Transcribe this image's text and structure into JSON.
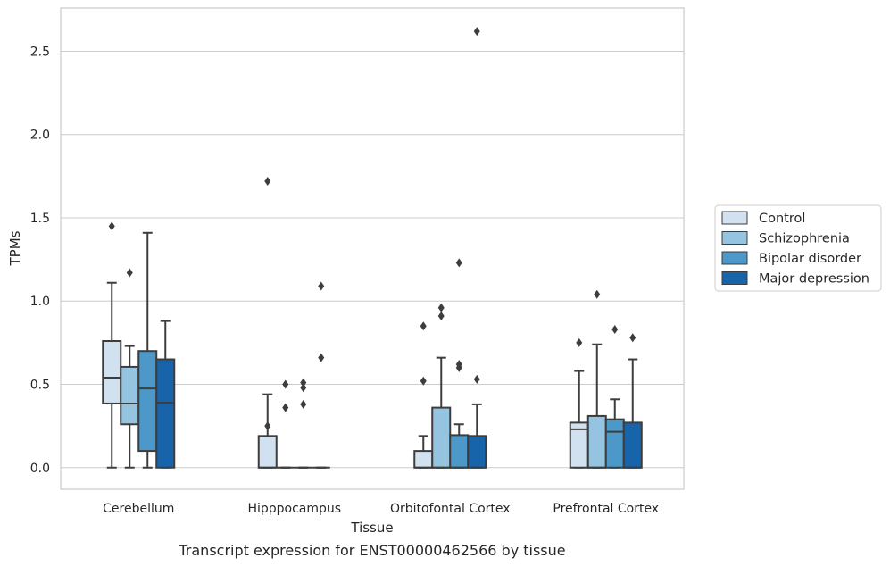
{
  "caption": "Transcript expression for ENST00000462566 by tissue",
  "chart_data": {
    "type": "box",
    "xlabel": "Tissue",
    "ylabel": "TPMs",
    "ylim": [
      -0.13,
      2.76
    ],
    "yticks": [
      0.0,
      0.5,
      1.0,
      1.5,
      2.0,
      2.5
    ],
    "ytick_labels": [
      "0.0",
      "0.5",
      "1.0",
      "1.5",
      "2.0",
      "2.5"
    ],
    "grid": "horizontal",
    "legend_position": "right",
    "categories": [
      "Cerebellum",
      "Hipppocampus",
      "Orbitofontal Cortex",
      "Prefrontal Cortex"
    ],
    "series": [
      {
        "name": "Control",
        "color": "#d1e1f0",
        "boxes": [
          {
            "low": 0.0,
            "q1": 0.385,
            "median": 0.54,
            "q3": 0.76,
            "high": 1.11,
            "outliers": [
              1.45
            ]
          },
          {
            "low": 0.0,
            "q1": 0.0,
            "median": 0.0,
            "q3": 0.19,
            "high": 0.44,
            "outliers": [
              0.25,
              1.72
            ]
          },
          {
            "low": 0.0,
            "q1": 0.0,
            "median": 0.0,
            "q3": 0.1,
            "high": 0.19,
            "outliers": [
              0.52,
              0.85
            ]
          },
          {
            "low": 0.0,
            "q1": 0.0,
            "median": 0.23,
            "q3": 0.27,
            "high": 0.58,
            "outliers": [
              0.75
            ]
          }
        ]
      },
      {
        "name": "Schizophrenia",
        "color": "#94c4df",
        "boxes": [
          {
            "low": 0.0,
            "q1": 0.26,
            "median": 0.385,
            "q3": 0.605,
            "high": 0.73,
            "outliers": [
              1.17
            ]
          },
          {
            "low": 0.0,
            "q1": 0.0,
            "median": 0.0,
            "q3": 0.0,
            "high": 0.0,
            "outliers": [
              0.36,
              0.5
            ]
          },
          {
            "low": 0.0,
            "q1": 0.0,
            "median": 0.0,
            "q3": 0.36,
            "high": 0.66,
            "outliers": [
              0.91,
              0.96
            ]
          },
          {
            "low": 0.0,
            "q1": 0.0,
            "median": 0.0,
            "q3": 0.31,
            "high": 0.74,
            "outliers": [
              1.04
            ]
          }
        ]
      },
      {
        "name": "Bipolar disorder",
        "color": "#4b98c9",
        "boxes": [
          {
            "low": 0.0,
            "q1": 0.1,
            "median": 0.475,
            "q3": 0.7,
            "high": 1.41,
            "outliers": []
          },
          {
            "low": 0.0,
            "q1": 0.0,
            "median": 0.0,
            "q3": 0.0,
            "high": 0.0,
            "outliers": [
              0.38,
              0.48,
              0.51
            ]
          },
          {
            "low": 0.0,
            "q1": 0.0,
            "median": 0.0,
            "q3": 0.195,
            "high": 0.26,
            "outliers": [
              0.6,
              0.62,
              1.23
            ]
          },
          {
            "low": 0.0,
            "q1": 0.0,
            "median": 0.215,
            "q3": 0.29,
            "high": 0.41,
            "outliers": [
              0.83
            ]
          }
        ]
      },
      {
        "name": "Major depression",
        "color": "#1764ab",
        "boxes": [
          {
            "low": 0.0,
            "q1": 0.0,
            "median": 0.39,
            "q3": 0.65,
            "high": 0.88,
            "outliers": []
          },
          {
            "low": 0.0,
            "q1": 0.0,
            "median": 0.0,
            "q3": 0.0,
            "high": 0.0,
            "outliers": [
              0.66,
              1.09
            ]
          },
          {
            "low": 0.0,
            "q1": 0.0,
            "median": 0.0,
            "q3": 0.19,
            "high": 0.38,
            "outliers": [
              0.53,
              2.62
            ]
          },
          {
            "low": 0.0,
            "q1": 0.0,
            "median": 0.0,
            "q3": 0.27,
            "high": 0.65,
            "outliers": [
              0.78
            ]
          }
        ]
      }
    ]
  }
}
